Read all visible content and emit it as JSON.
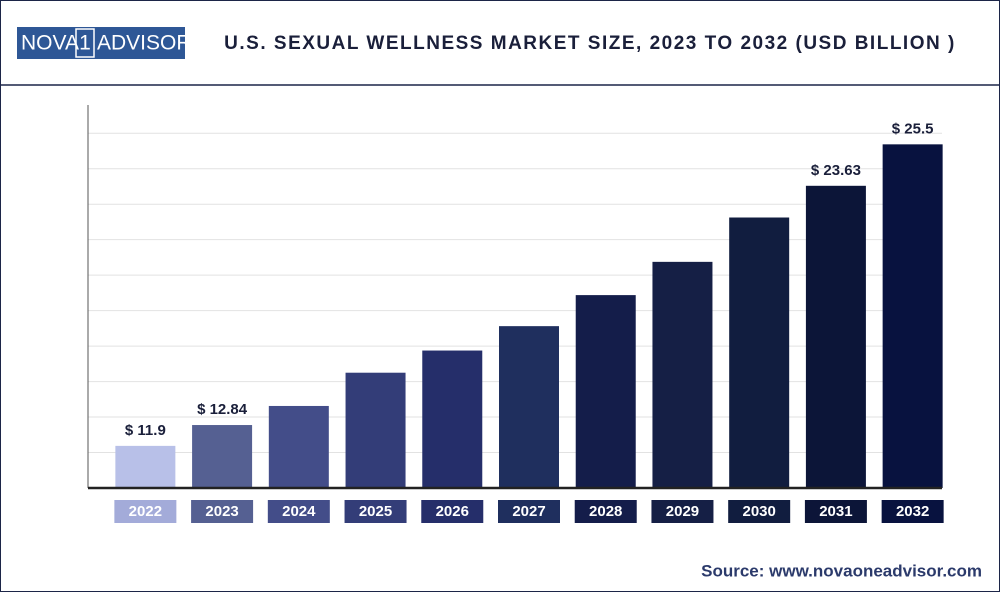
{
  "logo": {
    "left": "NOVA",
    "mid": "1",
    "right": "ADVISOR"
  },
  "source": "Source: www.novaoneadvisor.com",
  "chart_data": {
    "type": "bar",
    "title": "U.S. SEXUAL WELLNESS MARKET SIZE, 2023 TO 2032 (USD BILLION )",
    "categories": [
      "2022",
      "2023",
      "2024",
      "2025",
      "2026",
      "2027",
      "2028",
      "2029",
      "2030",
      "2031",
      "2032"
    ],
    "values": [
      11.9,
      12.84,
      13.7,
      15.2,
      16.2,
      17.3,
      18.7,
      20.2,
      22.2,
      23.63,
      25.5
    ],
    "value_labels": [
      "$ 11.9",
      "$ 12.84",
      null,
      null,
      null,
      null,
      null,
      null,
      null,
      "$ 23.63",
      "$ 25.5"
    ],
    "colors": [
      "#b8c0e8",
      "#556092",
      "#434d89",
      "#333d78",
      "#252e6a",
      "#1f2f5e",
      "#141d4a",
      "#151f45",
      "#111d3f",
      "#0c1538",
      "#08123f"
    ],
    "label_colors": [
      "#a3abd9",
      "#556092",
      "#434d89",
      "#333d78",
      "#252e6a",
      "#1f2f5e",
      "#141d4a",
      "#151f45",
      "#111d3f",
      "#0c1538",
      "#08123f"
    ],
    "ylim": [
      10,
      27.5
    ],
    "yticks": [
      10,
      11.6,
      13.2,
      14.8,
      16.4,
      18,
      19.6,
      21.2,
      22.8,
      24.4,
      26
    ],
    "grid": true
  }
}
